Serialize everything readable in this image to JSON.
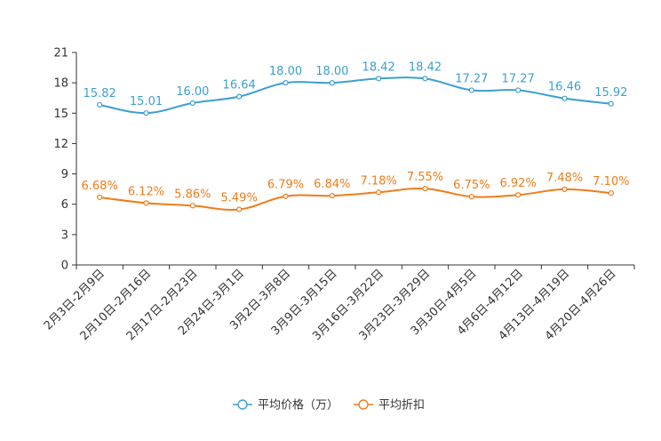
{
  "chart_data": {
    "type": "line",
    "categories": [
      "2月3日-2月9日",
      "2月10日-2月16日",
      "2月17日-2月23日",
      "2月24日-3月1日",
      "3月2日-3月8日",
      "3月9日-3月15日",
      "3月16日-3月22日",
      "3月23日-3月29日",
      "3月30日-4月5日",
      "4月6日-4月12日",
      "4月13日-4月19日",
      "4月20日-4月26日"
    ],
    "ylim": [
      0,
      21
    ],
    "yticks": [
      0,
      3,
      6,
      9,
      12,
      15,
      18,
      21
    ],
    "series": [
      {
        "name": "平均价格（万）",
        "color": "#3c9fd1",
        "values": [
          15.82,
          15.01,
          16.0,
          16.64,
          18.0,
          18.0,
          18.42,
          18.42,
          17.27,
          17.27,
          16.46,
          15.92
        ],
        "labels": [
          "15.82",
          "15.01",
          "16.00",
          "16.64",
          "18.00",
          "18.00",
          "18.42",
          "18.42",
          "17.27",
          "17.27",
          "16.46",
          "15.92"
        ]
      },
      {
        "name": "平均折扣",
        "color": "#f07c1a",
        "values": [
          6.68,
          6.12,
          5.86,
          5.49,
          6.79,
          6.84,
          7.18,
          7.55,
          6.75,
          6.92,
          7.48,
          7.1
        ],
        "labels": [
          "6.68%",
          "6.12%",
          "5.86%",
          "5.49%",
          "6.79%",
          "6.84%",
          "7.18%",
          "7.55%",
          "6.75%",
          "6.92%",
          "7.48%",
          "7.10%"
        ]
      }
    ],
    "legend_position": "bottom-center"
  }
}
